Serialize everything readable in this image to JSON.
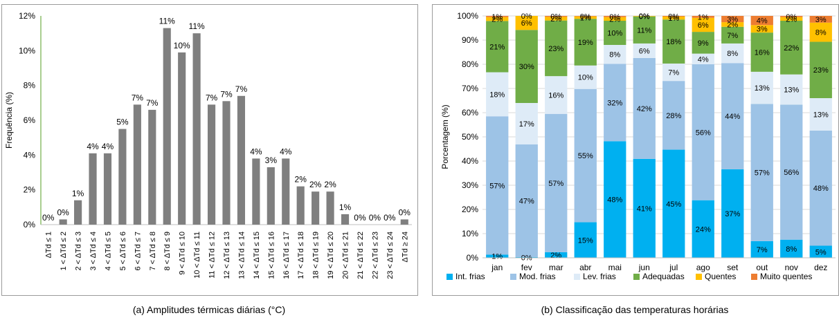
{
  "captions": {
    "a": "(a) Amplitudes térmicas diárias (°C)",
    "b": "(b) Classificação das temperaturas horárias"
  },
  "chart_data": [
    {
      "type": "bar",
      "ylabel": "Frequência (%)",
      "ylim": [
        0,
        12
      ],
      "yticks": [
        "0%",
        "2%",
        "4%",
        "6%",
        "8%",
        "10%",
        "12%"
      ],
      "grid": false,
      "bar_color": "#7f7f7f",
      "categories": [
        "ΔTd ≤ 1",
        "1 < ΔTd ≤ 2",
        "2 < ΔTd ≤ 3",
        "3 < ΔTd ≤ 4",
        "4 < ΔTd ≤ 5",
        "5 < ΔTd ≤ 6",
        "6 < ΔTd ≤ 7",
        "7 < ΔTd ≤ 8",
        "8 < ΔTd ≤ 9",
        "9 < ΔTd ≤ 10",
        "10 < ΔTd ≤ 11",
        "11 < ΔTd ≤ 12",
        "12 < ΔTd ≤ 13",
        "13 < ΔTd ≤ 14",
        "14 < ΔTd ≤ 15",
        "15 < ΔTd ≤ 16",
        "16 < ΔTd ≤ 17",
        "17 < ΔTd ≤ 18",
        "18 < ΔTd ≤ 19",
        "19 < ΔTd ≤ 20",
        "20 < ΔTd ≤ 21",
        "21 < ΔTd ≤ 22",
        "22 < ΔTd ≤ 23",
        "23 < ΔTd ≤ 24",
        "ΔTd ≥ 24"
      ],
      "values": [
        0,
        0.3,
        1.4,
        4.1,
        4.1,
        5.5,
        6.9,
        6.6,
        11.3,
        9.9,
        11.0,
        6.9,
        7.1,
        7.4,
        3.8,
        3.3,
        3.8,
        2.2,
        1.9,
        1.9,
        0.6,
        0,
        0,
        0,
        0.3
      ],
      "labels": [
        "0%",
        "0%",
        "1%",
        "4%",
        "4%",
        "5%",
        "7%",
        "7%",
        "11%",
        "10%",
        "11%",
        "7%",
        "7%",
        "7%",
        "4%",
        "3%",
        "4%",
        "2%",
        "2%",
        "2%",
        "1%",
        "0%",
        "0%",
        "0%",
        "0%"
      ]
    },
    {
      "type": "bar",
      "stacked": true,
      "ylabel": "Porcentagem (%)",
      "ylim": [
        0,
        100
      ],
      "yticks": [
        "0%",
        "10%",
        "20%",
        "30%",
        "40%",
        "50%",
        "60%",
        "70%",
        "80%",
        "90%",
        "100%"
      ],
      "grid": true,
      "legend_position": "bottom",
      "categories": [
        "jan",
        "fev",
        "mar",
        "abr",
        "mai",
        "jun",
        "jul",
        "ago",
        "set",
        "out",
        "nov",
        "dez"
      ],
      "series": [
        {
          "name": "Int. frias",
          "color": "#00b0f0",
          "values": [
            1.3,
            0.3,
            2.3,
            14.7,
            48.2,
            40.9,
            44.7,
            23.8,
            36.6,
            6.9,
            7.5,
            5.0
          ],
          "labels": [
            "1%",
            "0%",
            "2%",
            "15%",
            "48%",
            "41%",
            "45%",
            "24%",
            "37%",
            "7%",
            "8%",
            "5%"
          ]
        },
        {
          "name": "Mod. frias",
          "color": "#9dc3e6",
          "values": [
            57.2,
            46.6,
            57.2,
            55.1,
            32.0,
            41.7,
            28.4,
            56.2,
            43.9,
            56.7,
            55.8,
            47.6
          ],
          "labels": [
            "57%",
            "47%",
            "57%",
            "55%",
            "32%",
            "42%",
            "28%",
            "56%",
            "44%",
            "57%",
            "56%",
            "48%"
          ]
        },
        {
          "name": "Lev. frias",
          "color": "#deebf7",
          "values": [
            18.2,
            17.1,
            15.6,
            9.7,
            7.8,
            6.0,
            7.2,
            4.4,
            8.1,
            13.3,
            12.5,
            13.4
          ],
          "labels": [
            "18%",
            "17%",
            "16%",
            "10%",
            "8%",
            "6%",
            "7%",
            "4%",
            "8%",
            "13%",
            "13%",
            "13%"
          ]
        },
        {
          "name": "Adequadas",
          "color": "#70ad47",
          "values": [
            21.2,
            30.2,
            23.0,
            19.3,
            10.0,
            11.2,
            18.2,
            9.0,
            6.9,
            16.2,
            22.2,
            23.3
          ],
          "labels": [
            "21%",
            "30%",
            "23%",
            "19%",
            "10%",
            "11%",
            "18%",
            "9%",
            "7%",
            "16%",
            "22%",
            "23%"
          ]
        },
        {
          "name": "Quentes",
          "color": "#ffc000",
          "values": [
            1.6,
            5.8,
            1.5,
            1.0,
            1.5,
            0.2,
            1.2,
            5.8,
            1.9,
            3.1,
            1.5,
            7.9
          ],
          "labels": [
            "2%",
            "6%",
            "2%",
            "1%",
            "2%",
            "0%",
            "1%",
            "6%",
            "2%",
            "3%",
            "2%",
            "8%"
          ]
        },
        {
          "name": "Muito quentes",
          "color": "#ed7d31",
          "values": [
            0.5,
            0.0,
            0.4,
            0.2,
            0.5,
            0.0,
            0.3,
            0.8,
            2.6,
            3.8,
            0.5,
            2.8
          ],
          "labels": [
            "1%",
            "0%",
            "0%",
            "0%",
            "0%",
            "0%",
            "0%",
            "1%",
            "3%",
            "4%",
            "0%",
            "3%"
          ]
        }
      ]
    }
  ]
}
